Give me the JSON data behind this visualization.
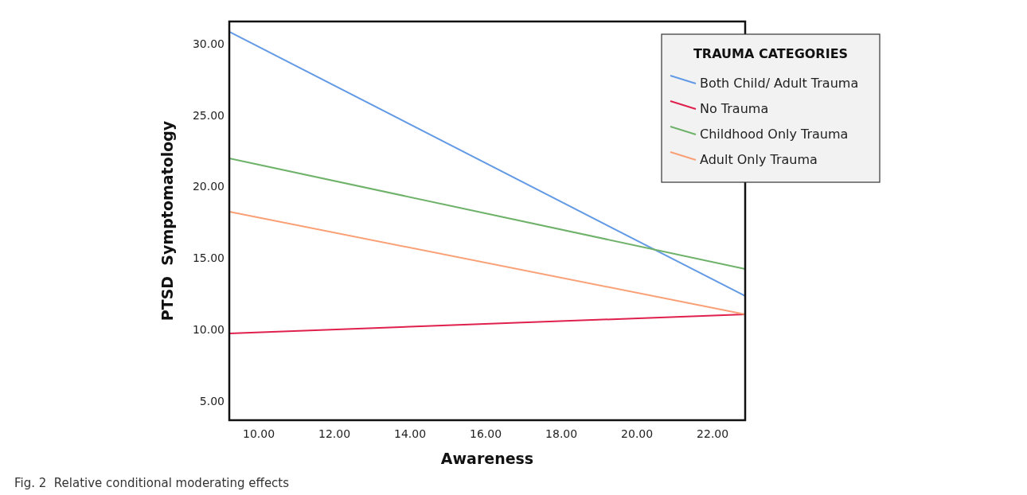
{
  "chart_data": {
    "type": "line",
    "xlabel": "Awareness",
    "ylabel": "PTSD  Symptomatology",
    "legend_title": "TRAUMA CATEGORIES",
    "legend": "top right",
    "grid": false,
    "marker": "none",
    "line_style": "solid",
    "xlim": [
      9.22,
      22.86
    ],
    "ylim": [
      3.66,
      31.56
    ],
    "xticks": [
      {
        "value": 10,
        "label": "10.00"
      },
      {
        "value": 12,
        "label": "12.00"
      },
      {
        "value": 14,
        "label": "14.00"
      },
      {
        "value": 16,
        "label": "16.00"
      },
      {
        "value": 18,
        "label": "18.00"
      },
      {
        "value": 20,
        "label": "20.00"
      },
      {
        "value": 22,
        "label": "22.00"
      }
    ],
    "yticks": [
      {
        "value": 5,
        "label": "5.00"
      },
      {
        "value": 10,
        "label": "10.00"
      },
      {
        "value": 15,
        "label": "15.00"
      },
      {
        "value": 20,
        "label": "20.00"
      },
      {
        "value": 25,
        "label": "25.00"
      },
      {
        "value": 30,
        "label": "30.00"
      }
    ],
    "x": [
      9.22,
      22.86
    ],
    "series": [
      {
        "name": "Both Child/ Adult Trauma",
        "color": "#629ae6",
        "values": [
          30.84,
          12.35
        ]
      },
      {
        "name": "No Trauma",
        "color": "#e0204c",
        "values": [
          9.73,
          11.07
        ]
      },
      {
        "name": "Childhood Only Trauma",
        "color": "#6fb26a",
        "values": [
          21.98,
          14.24
        ]
      },
      {
        "name": "Adult Only Trauma",
        "color": "#f9a076",
        "values": [
          18.25,
          11.07
        ]
      }
    ],
    "annotations": [
      "Fig. 2  Relative conditional moderating effects"
    ]
  }
}
